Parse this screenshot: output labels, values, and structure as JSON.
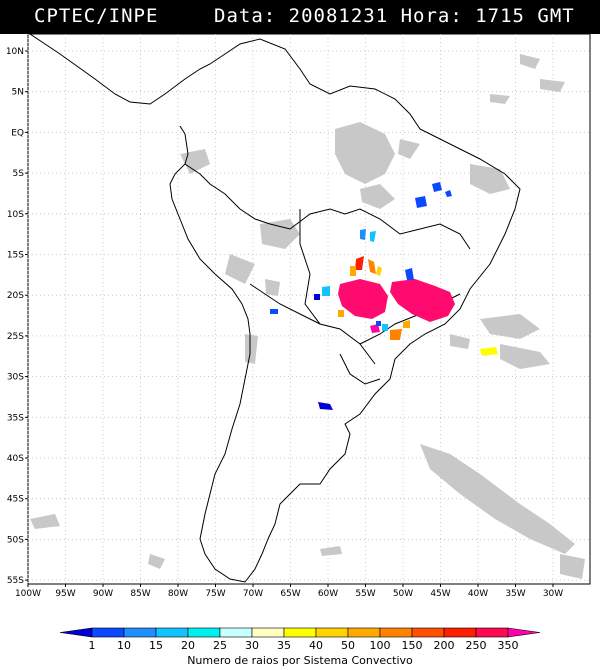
{
  "header": {
    "source": "CPTEC/INPE",
    "datetime": "Data: 20081231 Hora: 1715 GMT"
  },
  "map": {
    "lat_labels": [
      "10N",
      "5N",
      "EQ",
      "5S",
      "10S",
      "15S",
      "20S",
      "25S",
      "30S",
      "35S",
      "40S",
      "45S",
      "50S",
      "55S"
    ],
    "lon_labels": [
      "100W",
      "95W",
      "90W",
      "85W",
      "80W",
      "75W",
      "70W",
      "65W",
      "60W",
      "55W",
      "50W",
      "45W",
      "40W",
      "35W",
      "30W"
    ],
    "lat_range": [
      -56,
      12
    ],
    "lon_range": [
      -100,
      -28
    ],
    "grid": true
  },
  "colorbar": {
    "labels": [
      "1",
      "10",
      "15",
      "20",
      "25",
      "30",
      "35",
      "40",
      "50",
      "100",
      "150",
      "200",
      "250",
      "350"
    ],
    "colors": [
      "#0000d8",
      "#0a49ff",
      "#1e8fff",
      "#12c3ff",
      "#00f0f0",
      "#c8ffff",
      "#ffffc0",
      "#ffff00",
      "#ffd200",
      "#ffaa00",
      "#ff8200",
      "#ff5000",
      "#ff1e00",
      "#ff0a50",
      "#ff00aa"
    ],
    "caption": "Numero de raios por Sistema Convectivo"
  },
  "colors": {
    "land": "#ffffff",
    "cloud": "#c8c8c8",
    "coast": "#000000"
  }
}
